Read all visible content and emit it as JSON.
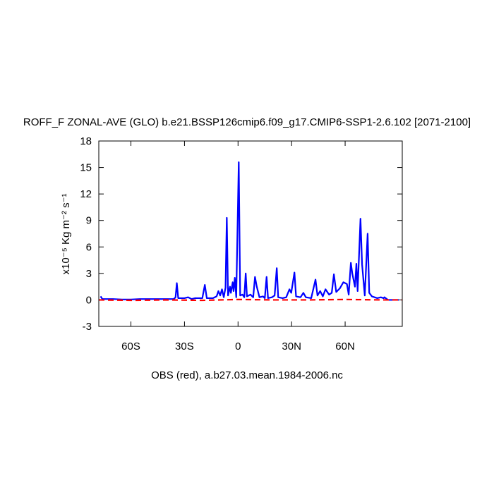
{
  "chart_data": {
    "type": "line",
    "title": "ROFF_F ZONAL-AVE (GLO) b.e21.BSSP126cmip6.f09_g17.CMIP6-SSP1-2.6.102 [2071-2100]",
    "y_label": "x10⁻⁵ Kg m⁻² s⁻¹",
    "footnote": "OBS (red), a.b27.03.mean.1984-2006.nc",
    "xlim": [
      -78,
      92
    ],
    "ylim": [
      -3,
      18
    ],
    "xticks": [
      {
        "value": -60,
        "label": "60S"
      },
      {
        "value": -30,
        "label": "30S"
      },
      0,
      {
        "value": 30,
        "label": "30N"
      },
      {
        "value": 60,
        "label": "60N"
      }
    ],
    "yticks": [
      -3,
      0,
      3,
      6,
      9,
      12,
      15,
      18
    ],
    "series": [
      {
        "color": "#0000ff",
        "dashed": false,
        "x": [
          -77,
          -76,
          -70,
          -65,
          -60,
          -55,
          -50,
          -45,
          -40,
          -36,
          -35,
          -34.3,
          -33.5,
          -30,
          -28,
          -26,
          -24,
          -20,
          -18.6,
          -17.5,
          -14,
          -12,
          -11,
          -10,
          -9,
          -8,
          -7,
          -6.3,
          -5.6,
          -4.5,
          -4,
          -3,
          -2.5,
          -1.8,
          -1,
          0.4,
          1.2,
          2.5,
          3.5,
          4.3,
          5,
          7,
          8.5,
          9.5,
          10.5,
          12,
          14,
          15,
          16,
          16.8,
          19,
          20.5,
          21.7,
          22.5,
          25,
          27,
          28.8,
          29.8,
          31.6,
          32.5,
          35,
          36.6,
          38,
          41,
          43.4,
          44.5,
          46,
          47.5,
          49,
          51,
          52.5,
          53.7,
          55,
          57,
          59,
          61,
          62,
          63.2,
          64,
          65.5,
          66.3,
          67,
          68.6,
          69.5,
          71,
          72.6,
          73.5,
          75,
          78,
          80,
          81.5,
          82,
          84,
          90
        ],
        "values": [
          0.4,
          0.1,
          0.1,
          0.05,
          0.05,
          0.1,
          0.1,
          0.1,
          0.1,
          0.1,
          0.3,
          1.9,
          0.2,
          0.2,
          0.3,
          0.1,
          0.2,
          0.2,
          1.7,
          0.2,
          0.2,
          0.4,
          1.0,
          0.5,
          1.2,
          0.3,
          1.4,
          9.3,
          0.5,
          1.5,
          0.8,
          2.0,
          1.0,
          2.5,
          0.3,
          15.6,
          0.5,
          0.6,
          0.3,
          3.0,
          0.4,
          0.6,
          0.3,
          2.6,
          1.5,
          0.3,
          0.4,
          0.2,
          2.6,
          0.2,
          0.3,
          0.5,
          3.6,
          0.3,
          0.2,
          0.3,
          1.2,
          0.8,
          3.1,
          0.4,
          0.3,
          0.8,
          0.3,
          0.2,
          2.3,
          0.5,
          1.0,
          0.4,
          1.2,
          0.6,
          0.8,
          2.9,
          0.9,
          1.3,
          2.0,
          1.8,
          0.6,
          4.2,
          3.0,
          1.5,
          4.1,
          1.0,
          9.2,
          4.0,
          0.5,
          7.5,
          0.8,
          0.4,
          0.2,
          0.3,
          0.2,
          0.3,
          0.0,
          0.0
        ]
      },
      {
        "color": "#ff0000",
        "dashed": true,
        "x": [
          -78,
          -60,
          -40,
          -20,
          0,
          20,
          40,
          60,
          80,
          92
        ],
        "values": [
          0.0,
          -0.05,
          0.0,
          -0.05,
          0.05,
          0.0,
          0.0,
          0.05,
          0.0,
          0.0
        ]
      }
    ]
  }
}
